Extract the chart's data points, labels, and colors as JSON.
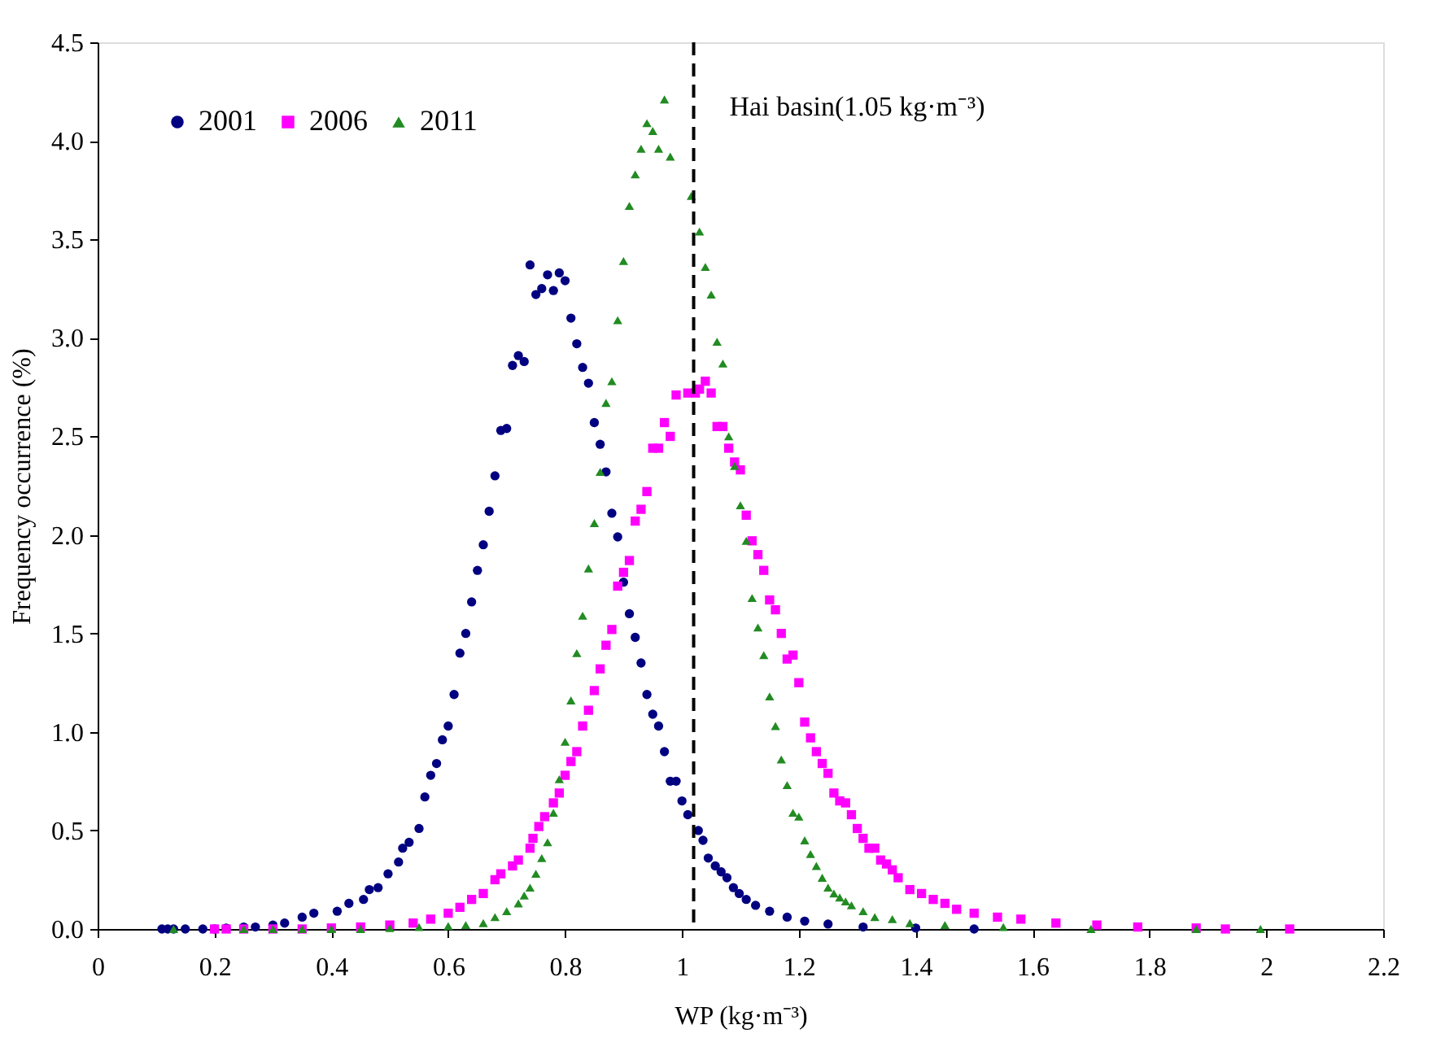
{
  "chart_data": {
    "type": "scatter",
    "xlabel": "WP (kg·m⁻³)",
    "ylabel": "Frequency occurrence (%)",
    "xlim": [
      0,
      2.2
    ],
    "ylim": [
      0,
      4.5
    ],
    "xticks": [
      0,
      0.2,
      0.4,
      0.6,
      0.8,
      1,
      1.2,
      1.4,
      1.6,
      1.8,
      2,
      2.2
    ],
    "yticks": [
      {
        "value": 0,
        "label": "0.0"
      },
      {
        "value": 0.5,
        "label": "0.5"
      },
      {
        "value": 1,
        "label": "1.0"
      },
      {
        "value": 1.5,
        "label": "1.5"
      },
      {
        "value": 2,
        "label": "2.0"
      },
      {
        "value": 2.5,
        "label": "2.5"
      },
      {
        "value": 3,
        "label": "3.0"
      },
      {
        "value": 3.5,
        "label": "3.5"
      },
      {
        "value": 4,
        "label": "4.0"
      },
      {
        "value": 4.5,
        "label": "4.5"
      }
    ],
    "legend": "top left",
    "series": [
      {
        "name": "2001",
        "color": "#000080",
        "marker": "circle",
        "x": [
          0.11,
          0.12,
          0.13,
          0.15,
          0.18,
          0.2,
          0.22,
          0.25,
          0.27,
          0.3,
          0.32,
          0.35,
          0.37,
          0.41,
          0.43,
          0.455,
          0.465,
          0.48,
          0.497,
          0.515,
          0.522,
          0.533,
          0.55,
          0.56,
          0.57,
          0.58,
          0.59,
          0.6,
          0.61,
          0.62,
          0.63,
          0.64,
          0.65,
          0.66,
          0.67,
          0.68,
          0.69,
          0.7,
          0.71,
          0.72,
          0.73,
          0.74,
          0.75,
          0.76,
          0.77,
          0.78,
          0.79,
          0.8,
          0.81,
          0.82,
          0.83,
          0.84,
          0.85,
          0.86,
          0.87,
          0.88,
          0.89,
          0.9,
          0.91,
          0.92,
          0.93,
          0.94,
          0.95,
          0.96,
          0.97,
          0.98,
          0.99,
          1.0,
          1.01,
          1.028,
          1.036,
          1.045,
          1.057,
          1.067,
          1.077,
          1.088,
          1.098,
          1.11,
          1.126,
          1.15,
          1.18,
          1.21,
          1.25,
          1.31,
          1.4,
          1.5
        ],
        "values": [
          0,
          0,
          0,
          0,
          0,
          0,
          0.005,
          0.01,
          0.01,
          0.02,
          0.03,
          0.06,
          0.08,
          0.09,
          0.13,
          0.15,
          0.2,
          0.21,
          0.28,
          0.34,
          0.41,
          0.44,
          0.51,
          0.67,
          0.78,
          0.84,
          0.96,
          1.03,
          1.19,
          1.4,
          1.5,
          1.66,
          1.82,
          1.95,
          2.12,
          2.3,
          2.53,
          2.54,
          2.86,
          2.91,
          2.88,
          3.37,
          3.22,
          3.25,
          3.32,
          3.24,
          3.33,
          3.29,
          3.1,
          2.97,
          2.85,
          2.77,
          2.57,
          2.46,
          2.32,
          2.11,
          1.99,
          1.76,
          1.6,
          1.48,
          1.35,
          1.19,
          1.09,
          1.03,
          0.9,
          0.75,
          0.75,
          0.65,
          0.58,
          0.5,
          0.45,
          0.36,
          0.32,
          0.29,
          0.26,
          0.21,
          0.18,
          0.15,
          0.12,
          0.09,
          0.06,
          0.04,
          0.025,
          0.01,
          0.005,
          0
        ]
      },
      {
        "name": "2006",
        "color": "#ff00ff",
        "marker": "square",
        "x": [
          0.2,
          0.22,
          0.25,
          0.3,
          0.35,
          0.4,
          0.45,
          0.5,
          0.54,
          0.57,
          0.6,
          0.62,
          0.64,
          0.66,
          0.68,
          0.69,
          0.71,
          0.72,
          0.74,
          0.745,
          0.755,
          0.765,
          0.78,
          0.79,
          0.8,
          0.81,
          0.82,
          0.83,
          0.84,
          0.85,
          0.86,
          0.87,
          0.88,
          0.89,
          0.9,
          0.91,
          0.92,
          0.93,
          0.94,
          0.95,
          0.96,
          0.97,
          0.98,
          0.99,
          1.01,
          1.023,
          1.03,
          1.04,
          1.05,
          1.06,
          1.07,
          1.08,
          1.09,
          1.1,
          1.11,
          1.12,
          1.13,
          1.14,
          1.15,
          1.16,
          1.17,
          1.18,
          1.19,
          1.2,
          1.21,
          1.22,
          1.23,
          1.24,
          1.25,
          1.26,
          1.27,
          1.28,
          1.29,
          1.3,
          1.31,
          1.32,
          1.33,
          1.34,
          1.35,
          1.36,
          1.37,
          1.39,
          1.41,
          1.43,
          1.45,
          1.47,
          1.5,
          1.54,
          1.58,
          1.64,
          1.71,
          1.78,
          1.88,
          1.93,
          2.04
        ],
        "values": [
          0,
          0,
          0,
          0,
          0,
          0.005,
          0.01,
          0.02,
          0.03,
          0.05,
          0.08,
          0.11,
          0.15,
          0.18,
          0.25,
          0.28,
          0.32,
          0.35,
          0.41,
          0.46,
          0.52,
          0.57,
          0.64,
          0.69,
          0.78,
          0.85,
          0.9,
          1.03,
          1.11,
          1.21,
          1.32,
          1.44,
          1.52,
          1.74,
          1.81,
          1.87,
          2.07,
          2.13,
          2.22,
          2.44,
          2.44,
          2.57,
          2.5,
          2.71,
          2.72,
          2.72,
          2.74,
          2.78,
          2.72,
          2.55,
          2.55,
          2.44,
          2.37,
          2.33,
          2.1,
          1.97,
          1.9,
          1.82,
          1.67,
          1.62,
          1.5,
          1.37,
          1.39,
          1.25,
          1.05,
          0.97,
          0.9,
          0.84,
          0.79,
          0.69,
          0.65,
          0.64,
          0.58,
          0.51,
          0.46,
          0.41,
          0.41,
          0.35,
          0.33,
          0.3,
          0.26,
          0.2,
          0.18,
          0.15,
          0.13,
          0.1,
          0.08,
          0.06,
          0.05,
          0.03,
          0.02,
          0.01,
          0.005,
          0,
          0
        ]
      },
      {
        "name": "2011",
        "color": "#228b22",
        "marker": "triangle",
        "x": [
          0.13,
          0.25,
          0.3,
          0.35,
          0.4,
          0.45,
          0.5,
          0.55,
          0.6,
          0.63,
          0.66,
          0.68,
          0.7,
          0.72,
          0.73,
          0.74,
          0.75,
          0.76,
          0.77,
          0.78,
          0.79,
          0.8,
          0.81,
          0.82,
          0.83,
          0.84,
          0.85,
          0.86,
          0.87,
          0.88,
          0.89,
          0.9,
          0.91,
          0.92,
          0.93,
          0.94,
          0.95,
          0.96,
          0.97,
          0.98,
          1.016,
          1.03,
          1.04,
          1.05,
          1.06,
          1.07,
          1.08,
          1.09,
          1.1,
          1.11,
          1.12,
          1.13,
          1.14,
          1.15,
          1.16,
          1.17,
          1.18,
          1.19,
          1.2,
          1.21,
          1.22,
          1.23,
          1.24,
          1.25,
          1.26,
          1.27,
          1.28,
          1.29,
          1.31,
          1.33,
          1.36,
          1.39,
          1.45,
          1.55,
          1.7,
          1.88,
          1.99
        ],
        "values": [
          0,
          0,
          0,
          0,
          0,
          0,
          0.005,
          0.01,
          0.015,
          0.02,
          0.03,
          0.06,
          0.09,
          0.13,
          0.17,
          0.21,
          0.28,
          0.36,
          0.44,
          0.59,
          0.76,
          0.95,
          1.16,
          1.4,
          1.59,
          1.83,
          2.06,
          2.32,
          2.67,
          2.78,
          3.09,
          3.39,
          3.67,
          3.83,
          3.96,
          4.09,
          4.05,
          3.96,
          4.21,
          3.92,
          3.72,
          3.54,
          3.36,
          3.22,
          2.98,
          2.87,
          2.5,
          2.35,
          2.15,
          1.97,
          1.68,
          1.53,
          1.39,
          1.18,
          1.03,
          0.86,
          0.73,
          0.59,
          0.57,
          0.45,
          0.38,
          0.32,
          0.26,
          0.21,
          0.18,
          0.16,
          0.14,
          0.12,
          0.09,
          0.06,
          0.05,
          0.03,
          0.02,
          0.01,
          0,
          0,
          0
        ]
      }
    ],
    "ref_lines": [
      {
        "axis": "x",
        "value": 1.02,
        "label": "Hai basin(1.05 kg·m⁻³)",
        "color": "#000000",
        "line_style": "dashed"
      }
    ]
  }
}
